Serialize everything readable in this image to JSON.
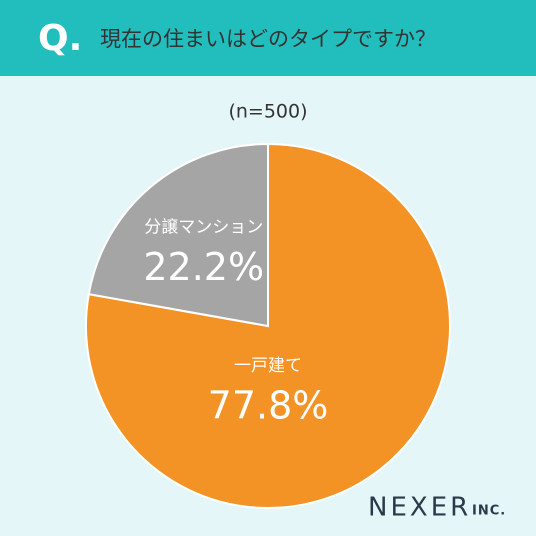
{
  "chart_data": {
    "type": "pie",
    "title_prefix": "Q.",
    "title": "現在の住まいはどのタイプですか？",
    "subtitle": "(n=500)",
    "categories": [
      "一戸建て",
      "分譲マンション"
    ],
    "values": [
      77.8,
      22.2
    ],
    "value_labels": [
      "77.8%",
      "22.2%"
    ],
    "colors": [
      "#f39325",
      "#a5a5a5"
    ],
    "source": "NEXER",
    "source_suffix": "INC."
  }
}
